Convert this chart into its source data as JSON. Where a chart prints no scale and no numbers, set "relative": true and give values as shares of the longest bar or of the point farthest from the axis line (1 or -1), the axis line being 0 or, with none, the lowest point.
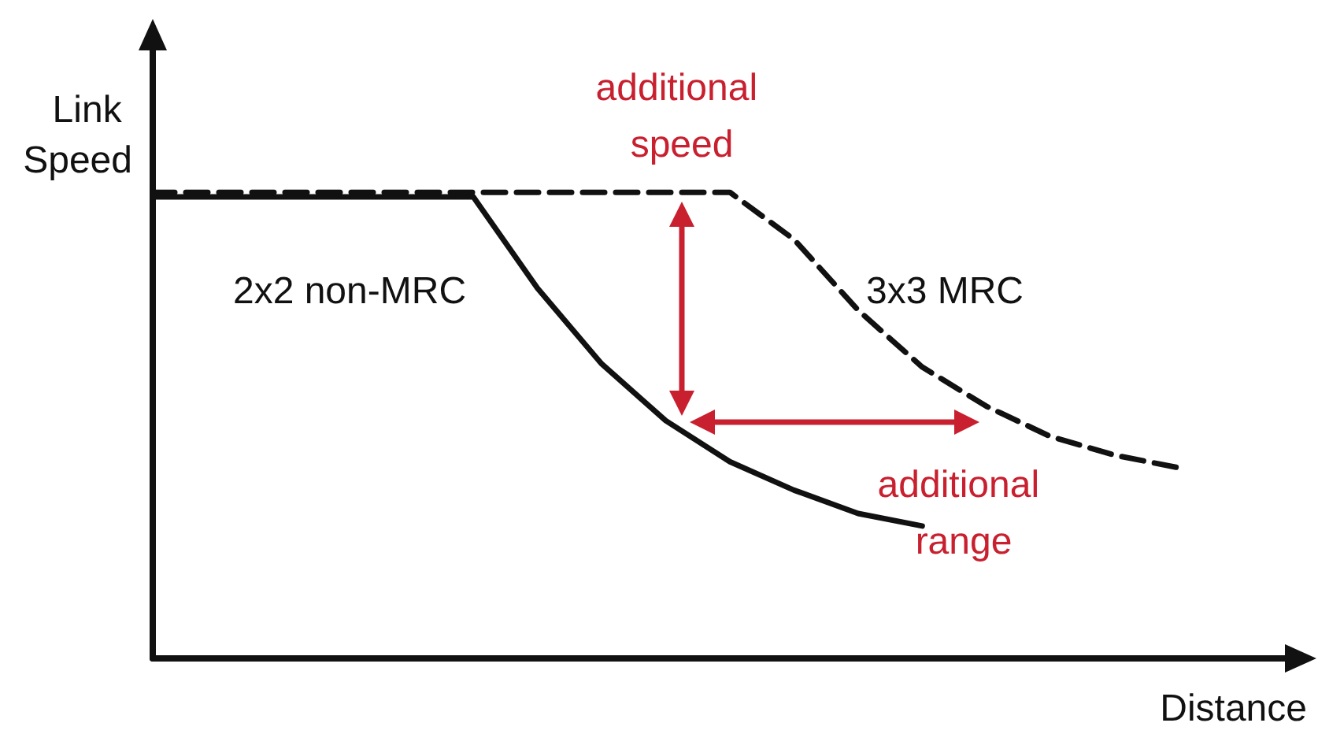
{
  "chart_data": {
    "type": "line",
    "relative": true,
    "xlabel": "Distance",
    "ylabel": "Link Speed",
    "marker": "none",
    "categories": [
      null,
      null,
      null,
      null,
      null,
      null,
      null,
      null,
      null,
      null,
      null,
      null,
      null,
      null,
      null,
      null,
      null,
      null,
      null
    ],
    "series": [
      {
        "name": "2x2 non-MRC",
        "color": "#111111",
        "line_style": "solid",
        "values": [
          0.99,
          0.99,
          0.99,
          0.99,
          0.99,
          0.99,
          0.794,
          0.632,
          0.51,
          0.422,
          0.361,
          0.311,
          0.284,
          null,
          null,
          null,
          null,
          null,
          null
        ]
      },
      {
        "name": "3x3 MRC",
        "color": "#111111",
        "line_style": "dashed",
        "values": [
          1,
          1,
          1,
          1,
          1,
          1,
          1,
          1,
          1,
          1,
          0.899,
          0.747,
          0.625,
          0.541,
          0.476,
          0.436,
          0.409,
          null,
          null
        ]
      }
    ],
    "annotations": [
      "additional speed",
      "additional range"
    ]
  }
}
